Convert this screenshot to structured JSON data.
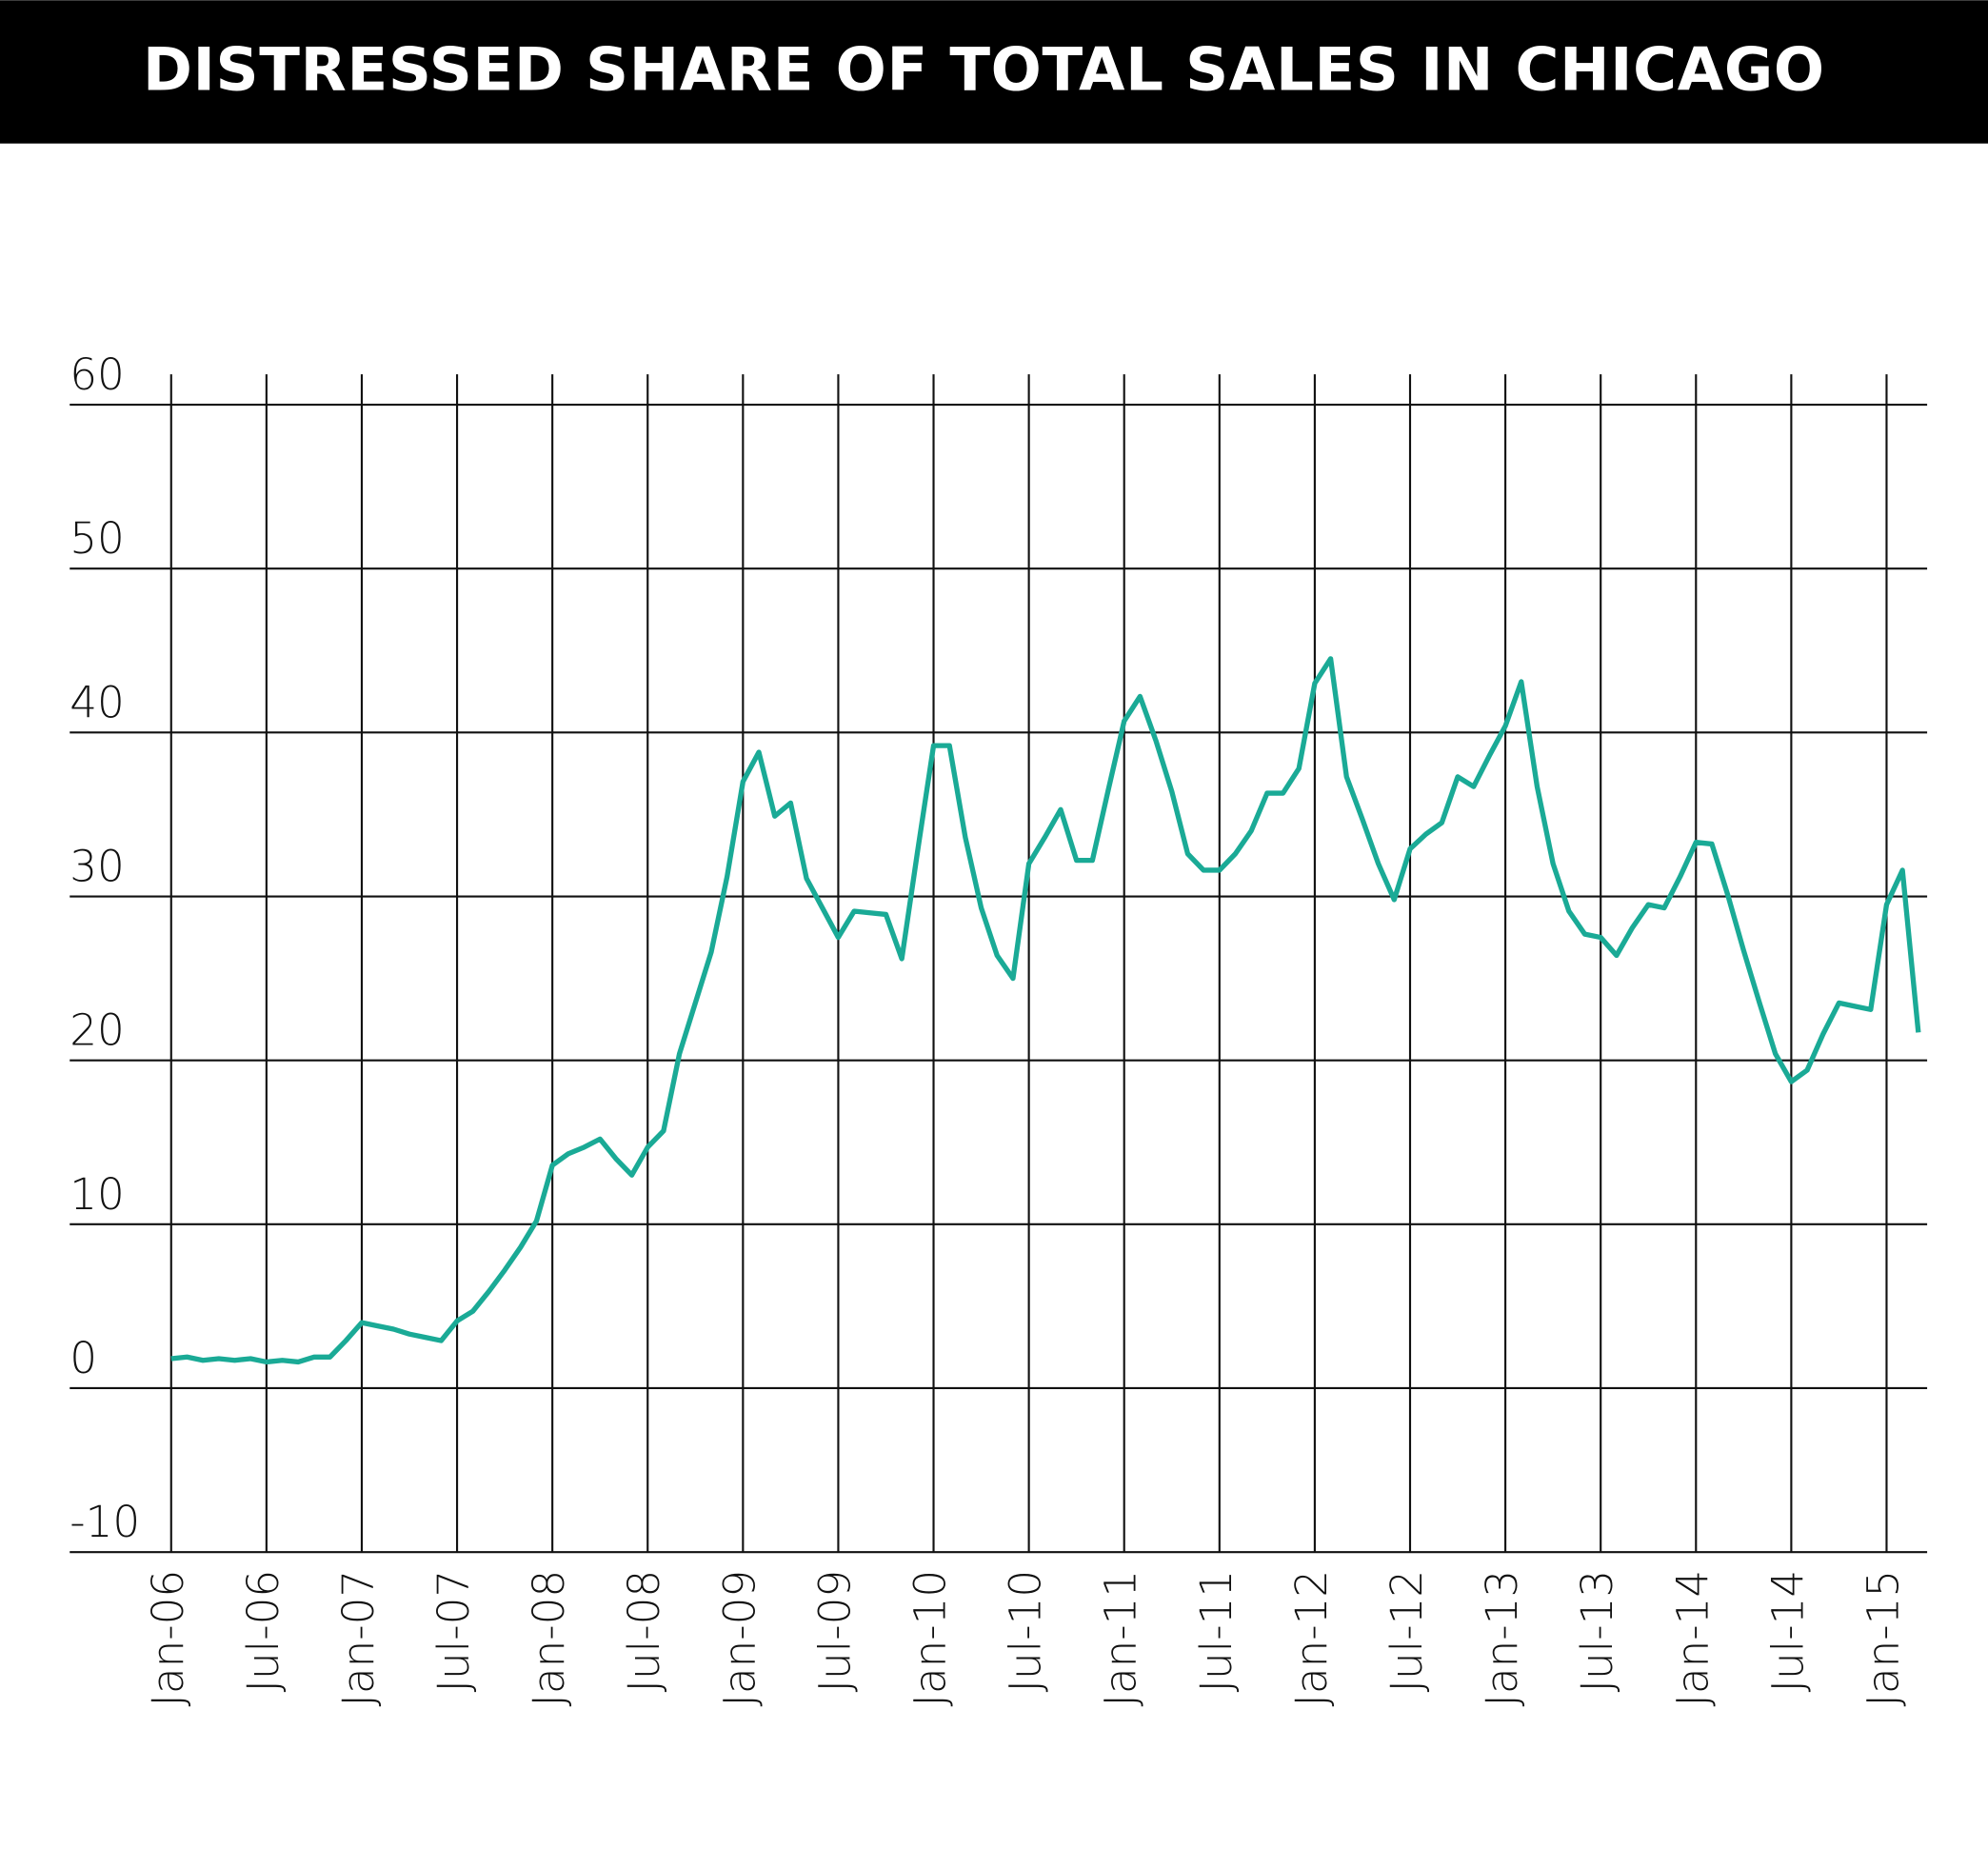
{
  "chart_data": {
    "type": "line",
    "title": "DISTRESSED SHARE OF TOTAL SALES IN CHICAGO",
    "categories": [
      "Jan-06",
      null,
      null,
      null,
      null,
      null,
      "Jul-06",
      null,
      null,
      null,
      null,
      null,
      "Jan-07",
      null,
      null,
      null,
      null,
      null,
      "Jul-07",
      null,
      null,
      null,
      null,
      null,
      "Jan-08",
      null,
      null,
      null,
      null,
      null,
      "Jul-08",
      null,
      null,
      null,
      null,
      null,
      "Jan-09",
      null,
      null,
      null,
      null,
      null,
      "Jul-09",
      null,
      null,
      null,
      null,
      null,
      "Jan-10",
      null,
      null,
      null,
      null,
      null,
      "Jul-10",
      null,
      null,
      null,
      null,
      null,
      "Jan-11",
      null,
      null,
      null,
      null,
      null,
      "Jul-11",
      null,
      null,
      null,
      null,
      null,
      "Jan-12",
      null,
      null,
      null,
      null,
      null,
      "Jul-12",
      null,
      null,
      null,
      null,
      null,
      "Jan-13",
      null,
      null,
      null,
      null,
      null,
      "Jul-13",
      null,
      null,
      null,
      null,
      null,
      "Jan-14",
      null,
      null,
      null,
      null,
      null,
      "Jul-14",
      null,
      null,
      null,
      null,
      null,
      "Jan-15",
      null,
      null
    ],
    "series": [
      {
        "name": "Distressed share",
        "color": "#1aaa96",
        "values": [
          1.8,
          1.9,
          1.7,
          1.8,
          1.7,
          1.8,
          1.6,
          1.7,
          1.6,
          1.9,
          1.9,
          2.9,
          4.0,
          3.8,
          3.6,
          3.3,
          3.1,
          2.9,
          4.1,
          4.7,
          5.9,
          7.2,
          8.6,
          10.2,
          13.6,
          14.3,
          14.7,
          15.2,
          14.0,
          13.0,
          14.7,
          15.7,
          20.4,
          23.5,
          26.6,
          31.2,
          37.0,
          38.8,
          34.9,
          35.7,
          31.1,
          29.3,
          27.5,
          29.1,
          29.0,
          28.9,
          26.2,
          32.8,
          39.2,
          39.2,
          33.6,
          29.3,
          26.4,
          25.0,
          32.0,
          33.6,
          35.3,
          32.2,
          32.2,
          36.5,
          40.7,
          42.2,
          39.5,
          36.4,
          32.6,
          31.6,
          31.6,
          32.6,
          34.0,
          36.3,
          36.3,
          37.8,
          43.0,
          44.5,
          37.3,
          34.7,
          32.0,
          29.8,
          32.9,
          33.8,
          34.5,
          37.3,
          36.7,
          38.6,
          40.4,
          43.1,
          36.7,
          32.0,
          29.1,
          27.7,
          27.5,
          26.4,
          28.1,
          29.5,
          29.3,
          31.2,
          33.3,
          33.2,
          30.1,
          26.7,
          23.5,
          20.4,
          18.7,
          19.4,
          21.6,
          23.5,
          23.3,
          23.1,
          29.5,
          31.6,
          21.7
        ]
      }
    ],
    "ylim": [
      -10,
      60
    ],
    "yticks": [
      -10,
      0,
      10,
      20,
      30,
      40,
      50,
      60
    ],
    "grid": true
  }
}
